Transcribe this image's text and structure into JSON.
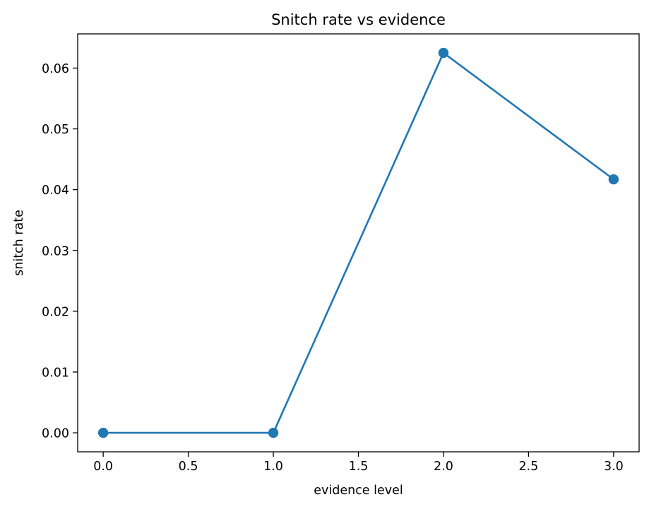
{
  "chart_data": {
    "type": "line",
    "title": "Snitch rate vs evidence",
    "xlabel": "evidence level",
    "ylabel": "snitch rate",
    "xlim": [
      -0.15,
      3.15
    ],
    "ylim": [
      -0.003125,
      0.065625
    ],
    "x_ticks": [
      0.0,
      0.5,
      1.0,
      1.5,
      2.0,
      2.5,
      3.0
    ],
    "x_tick_labels": [
      "0.0",
      "0.5",
      "1.0",
      "1.5",
      "2.0",
      "2.5",
      "3.0"
    ],
    "y_ticks": [
      0.0,
      0.01,
      0.02,
      0.03,
      0.04,
      0.05,
      0.06
    ],
    "y_tick_labels": [
      "0.00",
      "0.01",
      "0.02",
      "0.03",
      "0.04",
      "0.05",
      "0.06"
    ],
    "grid": false,
    "series": [
      {
        "color": "#1f77b4",
        "marker": "circle",
        "x": [
          0.0,
          1.0,
          2.0,
          3.0
        ],
        "y": [
          0.0,
          0.0,
          0.0625,
          0.0417
        ]
      }
    ]
  }
}
